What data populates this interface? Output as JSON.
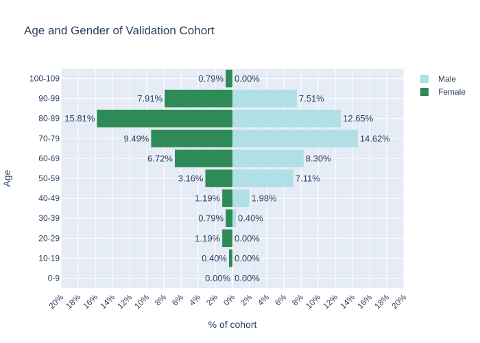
{
  "chart_data": {
    "type": "bar",
    "orientation": "horizontal",
    "title": "Age and Gender of Validation Cohort",
    "xlabel": "% of cohort",
    "ylabel": "Age",
    "categories": [
      "0-9",
      "10-19",
      "20-29",
      "30-39",
      "40-49",
      "50-59",
      "60-69",
      "70-79",
      "80-89",
      "90-99",
      "100-109"
    ],
    "series": [
      {
        "name": "Male",
        "color": "#b0dfe5",
        "values": [
          0,
          0,
          0,
          0.4,
          1.98,
          7.11,
          8.3,
          14.62,
          12.65,
          7.51,
          0
        ],
        "labels": [
          "0.00%",
          "0.00%",
          "0.00%",
          "0.40%",
          "1.98%",
          "7.11%",
          "8.30%",
          "14.62%",
          "12.65%",
          "7.51%",
          "0.00%"
        ]
      },
      {
        "name": "Female",
        "color": "#2e8b57",
        "values": [
          0,
          0.4,
          1.19,
          0.79,
          1.19,
          3.16,
          6.72,
          9.49,
          15.81,
          7.91,
          0.79
        ],
        "labels": [
          "0.00%",
          "0.40%",
          "1.19%",
          "0.79%",
          "1.19%",
          "3.16%",
          "6.72%",
          "9.49%",
          "15.81%",
          "7.91%",
          "0.79%"
        ]
      }
    ],
    "xlim": [
      -20,
      20
    ],
    "xticks": [
      -20,
      -18,
      -16,
      -14,
      -12,
      -10,
      -8,
      -6,
      -4,
      -2,
      0,
      2,
      4,
      6,
      8,
      10,
      12,
      14,
      16,
      18,
      20
    ],
    "xtick_labels": [
      "20%",
      "18%",
      "16%",
      "14%",
      "12%",
      "10%",
      "8%",
      "6%",
      "4%",
      "2%",
      "0%",
      "2%",
      "4%",
      "6%",
      "8%",
      "10%",
      "12%",
      "14%",
      "16%",
      "18%",
      "20%"
    ],
    "grid": true,
    "legend": "top-right",
    "background": "#e5ecf6"
  }
}
